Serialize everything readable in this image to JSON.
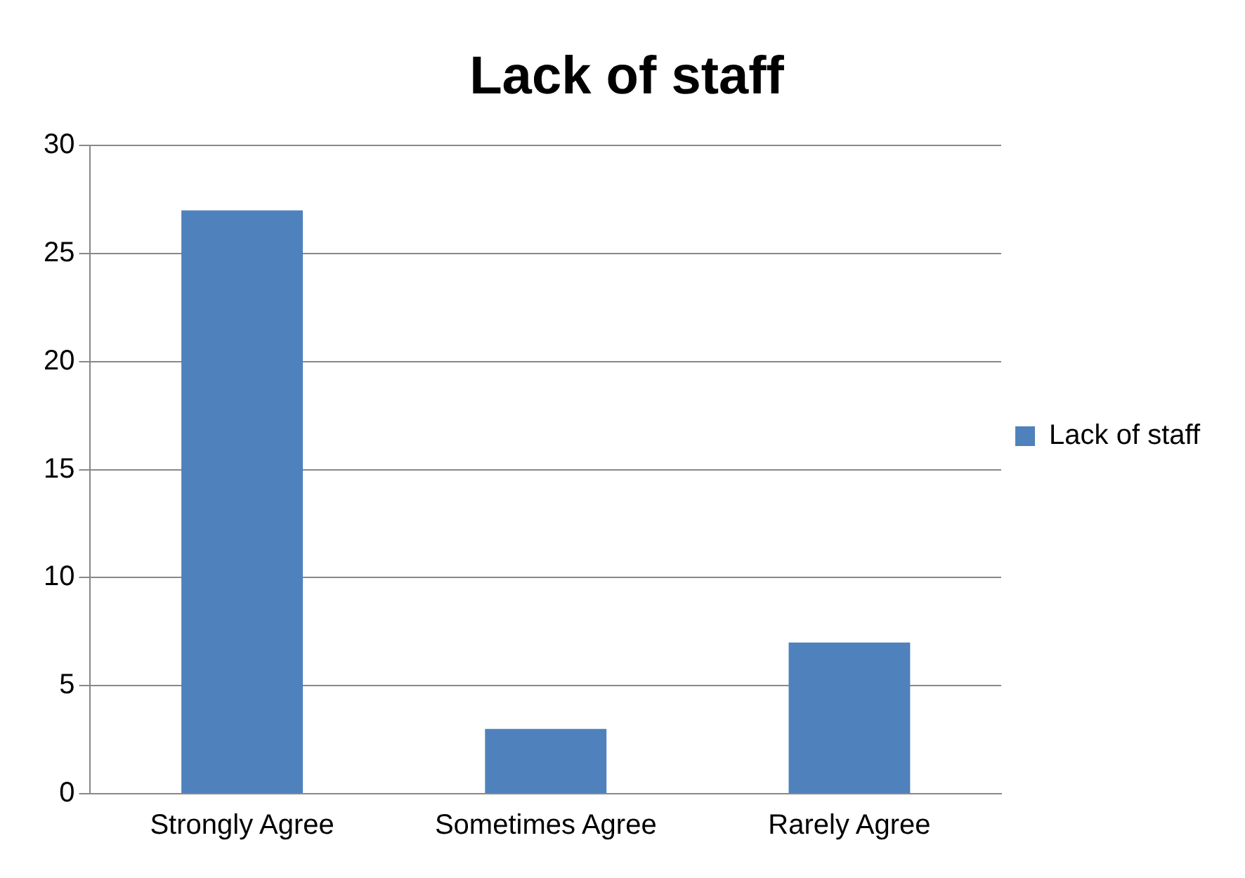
{
  "chart_data": {
    "type": "bar",
    "title": "Lack of staff",
    "categories": [
      "Strongly Agree",
      "Sometimes Agree",
      "Rarely Agree"
    ],
    "series": [
      {
        "name": "Lack of staff",
        "color": "#4f81bd",
        "values": [
          27,
          3,
          7
        ]
      }
    ],
    "ylim": [
      0,
      30
    ],
    "yticks": [
      0,
      5,
      10,
      15,
      20,
      25,
      30
    ],
    "grid": "y",
    "legend": "right"
  }
}
